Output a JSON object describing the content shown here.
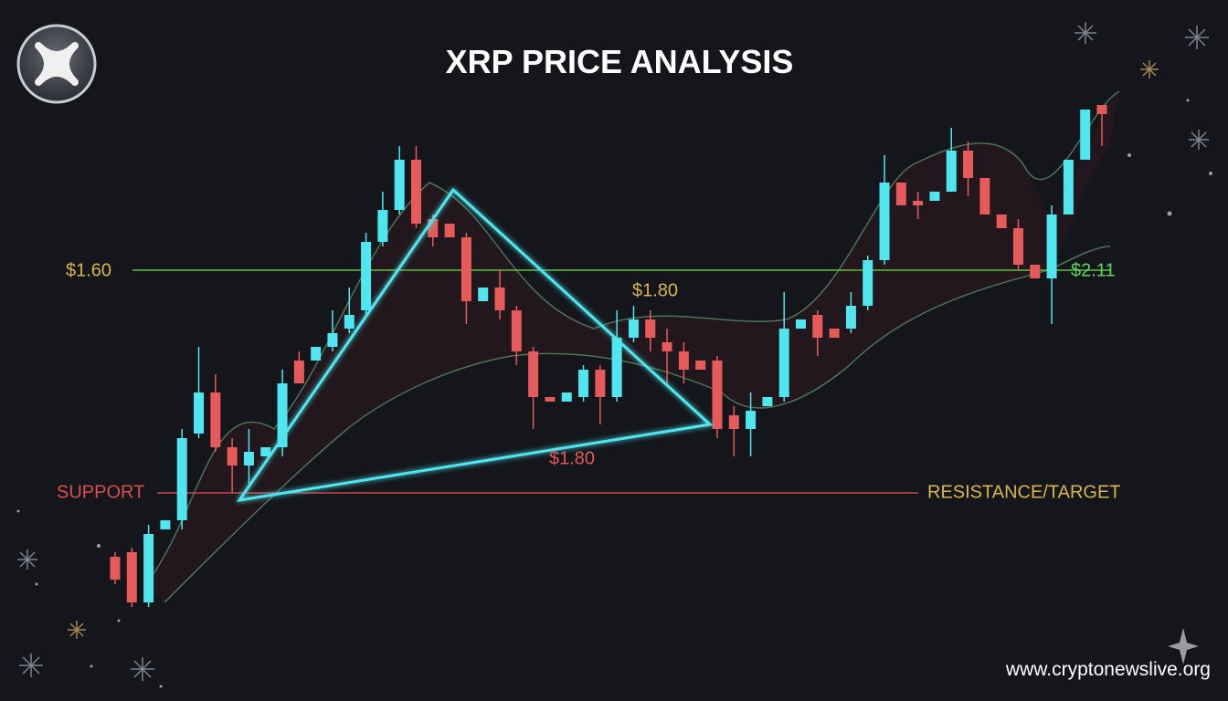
{
  "chart_data": {
    "type": "candlestick",
    "title": "XRP PRICE ANALYSIS",
    "up_color": "#4fe6ef",
    "down_color": "#e65a5a",
    "ylim": [
      1.2,
      2.4
    ],
    "open": [
      1.38,
      1.39,
      1.28,
      1.44,
      1.46,
      1.65,
      1.74,
      1.62,
      1.58,
      1.6,
      1.62,
      1.81,
      1.81,
      1.84,
      1.88,
      1.92,
      2.07,
      2.14,
      2.25,
      2.12,
      2.11,
      2.08,
      1.94,
      1.97,
      1.92,
      1.83,
      1.73,
      1.72,
      1.73,
      1.79,
      1.73,
      1.86,
      1.9,
      1.85,
      1.83,
      1.81,
      1.81,
      1.69,
      1.66,
      1.71,
      1.73,
      1.88,
      1.91,
      1.88,
      1.88,
      1.93,
      2.03,
      2.2,
      2.16,
      2.16,
      2.18,
      2.27,
      2.21,
      2.13,
      2.1,
      2.02,
      1.99,
      2.13,
      2.25,
      2.37
    ],
    "high": [
      1.39,
      1.4,
      1.45,
      1.46,
      1.66,
      1.84,
      1.78,
      1.64,
      1.66,
      1.62,
      1.79,
      1.83,
      1.84,
      1.92,
      1.97,
      2.09,
      2.18,
      2.28,
      2.28,
      2.13,
      2.11,
      2.09,
      1.97,
      2.01,
      1.93,
      1.84,
      1.73,
      1.74,
      1.8,
      1.8,
      1.92,
      1.93,
      1.92,
      1.88,
      1.85,
      1.81,
      1.82,
      1.71,
      1.74,
      1.73,
      1.96,
      1.9,
      1.92,
      1.88,
      1.96,
      2.04,
      2.26,
      2.2,
      2.18,
      2.18,
      2.32,
      2.29,
      2.21,
      2.13,
      2.12,
      2.02,
      2.15,
      2.25,
      2.36,
      2.37
    ],
    "low": [
      1.32,
      1.27,
      1.27,
      1.44,
      1.44,
      1.64,
      1.61,
      1.52,
      1.54,
      1.6,
      1.6,
      1.76,
      1.81,
      1.83,
      1.87,
      1.91,
      2.06,
      2.13,
      2.1,
      2.06,
      2.08,
      1.89,
      1.94,
      1.9,
      1.8,
      1.66,
      1.72,
      1.72,
      1.72,
      1.67,
      1.72,
      1.85,
      1.83,
      1.76,
      1.76,
      1.79,
      1.64,
      1.6,
      1.6,
      1.71,
      1.72,
      1.88,
      1.82,
      1.86,
      1.87,
      1.92,
      2.02,
      2.15,
      2.12,
      2.16,
      2.18,
      2.17,
      2.13,
      2.1,
      2.01,
      1.99,
      1.89,
      2.13,
      2.25,
      2.28
    ],
    "close": [
      1.33,
      1.28,
      1.43,
      1.46,
      1.64,
      1.74,
      1.62,
      1.58,
      1.61,
      1.62,
      1.76,
      1.76,
      1.84,
      1.87,
      1.91,
      2.07,
      2.14,
      2.25,
      2.11,
      2.08,
      2.08,
      1.94,
      1.97,
      1.92,
      1.83,
      1.73,
      1.72,
      1.74,
      1.79,
      1.73,
      1.86,
      1.9,
      1.86,
      1.83,
      1.79,
      1.79,
      1.66,
      1.66,
      1.7,
      1.73,
      1.88,
      1.9,
      1.86,
      1.86,
      1.93,
      2.03,
      2.2,
      2.15,
      2.15,
      2.18,
      2.27,
      2.21,
      2.13,
      2.1,
      2.02,
      1.99,
      2.13,
      2.25,
      2.36,
      2.35
    ],
    "annotations": [
      "$1.60",
      "$1.80",
      "$1.80",
      "$2.11",
      "SUPPORT",
      "RESISTANCE/TARGET"
    ],
    "source": "www.cryptonewslive.org"
  }
}
